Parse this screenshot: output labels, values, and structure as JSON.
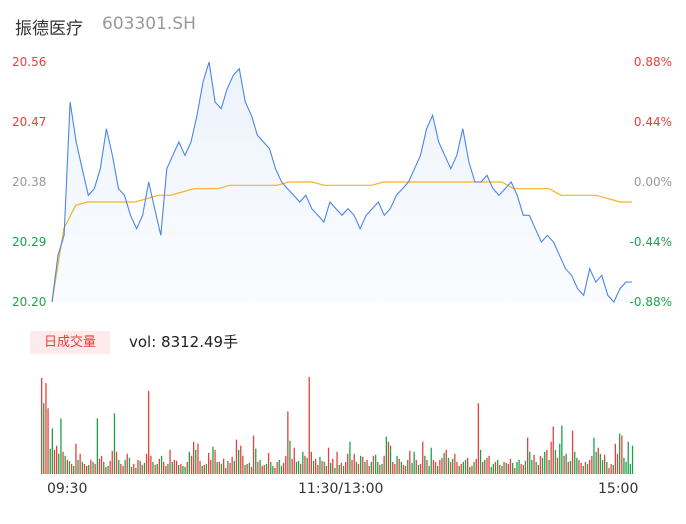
{
  "header": {
    "name": "振德医疗",
    "code": "603301.SH"
  },
  "volume_header": {
    "badge": "日成交量",
    "label": "vol: 8312.49手"
  },
  "colors": {
    "price": "#4a86e8",
    "avg": "#f5b325",
    "up": "#e8403c",
    "down": "#1aa34a",
    "flat": "#999999"
  },
  "chart_data": [
    {
      "type": "line",
      "title": "",
      "x_ticks": [
        "09:30",
        "11:30/13:00",
        "15:00"
      ],
      "y_ticks_left": [
        "20.56",
        "20.47",
        "20.38",
        "20.29",
        "20.20"
      ],
      "y_ticks_right": [
        "0.88%",
        "0.44%",
        "0.00%",
        "-0.44%",
        "-0.88%"
      ],
      "ylim": [
        20.2,
        20.56
      ],
      "prev_close": 20.38,
      "series": [
        {
          "role": "price",
          "values": [
            20.2,
            20.27,
            20.3,
            20.5,
            20.44,
            20.4,
            20.36,
            20.37,
            20.4,
            20.46,
            20.42,
            20.37,
            20.36,
            20.33,
            20.31,
            20.33,
            20.38,
            20.34,
            20.3,
            20.4,
            20.42,
            20.44,
            20.42,
            20.44,
            20.48,
            20.53,
            20.56,
            20.5,
            20.49,
            20.52,
            20.54,
            20.55,
            20.5,
            20.48,
            20.45,
            20.44,
            20.43,
            20.4,
            20.38,
            20.37,
            20.36,
            20.35,
            20.36,
            20.34,
            20.33,
            20.32,
            20.35,
            20.34,
            20.33,
            20.34,
            20.33,
            20.31,
            20.33,
            20.34,
            20.35,
            20.33,
            20.34,
            20.36,
            20.37,
            20.38,
            20.4,
            20.42,
            20.46,
            20.48,
            20.44,
            20.42,
            20.4,
            20.42,
            20.46,
            20.41,
            20.38,
            20.38,
            20.39,
            20.37,
            20.36,
            20.37,
            20.38,
            20.36,
            20.33,
            20.33,
            20.31,
            20.29,
            20.3,
            20.29,
            20.27,
            20.25,
            20.24,
            20.22,
            20.21,
            20.25,
            20.23,
            20.24,
            20.21,
            20.2,
            20.22,
            20.23,
            20.23
          ]
        },
        {
          "role": "avg",
          "values": [
            20.2,
            20.31,
            20.345,
            20.35,
            20.35,
            20.35,
            20.35,
            20.35,
            20.355,
            20.36,
            20.36,
            20.365,
            20.37,
            20.37,
            20.37,
            20.375,
            20.375,
            20.375,
            20.375,
            20.375,
            20.38,
            20.38,
            20.38,
            20.375,
            20.375,
            20.375,
            20.375,
            20.375,
            20.38,
            20.38,
            20.38,
            20.38,
            20.38,
            20.38,
            20.38,
            20.38,
            20.38,
            20.38,
            20.38,
            20.37,
            20.37,
            20.37,
            20.37,
            20.36,
            20.36,
            20.36,
            20.36,
            20.355,
            20.35,
            20.35
          ]
        }
      ]
    },
    {
      "type": "bar",
      "title": "",
      "units": "手",
      "values": [
        95,
        70,
        90,
        65,
        25,
        45,
        24,
        28,
        20,
        55,
        22,
        18,
        14,
        13,
        10,
        8,
        30,
        14,
        20,
        12,
        10,
        8,
        9,
        14,
        12,
        10,
        55,
        15,
        18,
        12,
        7,
        8,
        13,
        23,
        60,
        22,
        14,
        10,
        8,
        14,
        20,
        16,
        7,
        10,
        6,
        14,
        13,
        9,
        11,
        20,
        82,
        18,
        12,
        9,
        10,
        15,
        18,
        12,
        8,
        10,
        24,
        12,
        14,
        13,
        9,
        10,
        8,
        7,
        12,
        22,
        18,
        32,
        24,
        30,
        13,
        8,
        9,
        10,
        21,
        14,
        27,
        24,
        12,
        12,
        10,
        15,
        6,
        13,
        11,
        17,
        13,
        34,
        24,
        28,
        18,
        9,
        10,
        11,
        7,
        38,
        25,
        12,
        14,
        8,
        9,
        10,
        21,
        12,
        8,
        6,
        12,
        14,
        8,
        11,
        18,
        62,
        33,
        15,
        26,
        12,
        13,
        10,
        22,
        18,
        16,
        96,
        22,
        13,
        15,
        9,
        17,
        13,
        12,
        8,
        26,
        11,
        15,
        6,
        22,
        9,
        11,
        8,
        12,
        20,
        32,
        14,
        20,
        12,
        10,
        18,
        17,
        12,
        14,
        8,
        12,
        18,
        19,
        12,
        9,
        10,
        18,
        37,
        32,
        28,
        12,
        10,
        18,
        15,
        12,
        9,
        8,
        14,
        23,
        11,
        22,
        14,
        9,
        10,
        32,
        18,
        14,
        8,
        26,
        14,
        12,
        8,
        14,
        16,
        21,
        24,
        16,
        12,
        15,
        20,
        12,
        8,
        10,
        12,
        14,
        16,
        7,
        8,
        12,
        15,
        70,
        24,
        12,
        14,
        16,
        18,
        7,
        10,
        12,
        14,
        9,
        8,
        12,
        11,
        10,
        15,
        11,
        6,
        12,
        14,
        10,
        9,
        13,
        36,
        22,
        14,
        19,
        12,
        9,
        18,
        16,
        22,
        24,
        14,
        32,
        47,
        24,
        16,
        30,
        48,
        18,
        20,
        12,
        13,
        43,
        22,
        16,
        14,
        11,
        8,
        12,
        10,
        14,
        18,
        36,
        22,
        26,
        20,
        14,
        19,
        12,
        6,
        10,
        9,
        30,
        20,
        40,
        38,
        16,
        12,
        32,
        10,
        28
      ],
      "up": [
        1,
        0,
        1,
        1,
        0,
        0,
        1,
        1,
        0,
        0,
        1,
        0,
        1,
        0,
        1,
        0,
        1,
        0,
        1,
        0,
        1,
        1,
        0,
        1,
        0,
        1,
        0,
        1,
        1,
        0,
        1,
        0,
        1,
        1,
        0,
        1,
        0,
        1,
        1,
        0,
        1,
        0,
        1,
        1,
        0,
        1,
        0,
        1,
        0,
        1,
        1,
        1,
        0,
        1,
        0,
        1,
        0,
        1,
        1,
        0,
        1,
        0,
        1,
        1,
        0,
        1,
        0,
        0,
        1,
        0,
        1,
        1,
        0,
        1,
        1,
        0,
        1,
        0,
        1,
        1,
        0,
        1,
        0,
        1,
        0,
        1,
        1,
        0,
        1,
        1,
        0,
        1,
        0,
        1,
        1,
        0,
        1,
        0,
        1,
        1,
        0,
        1,
        0,
        1,
        1,
        0,
        1,
        0,
        0,
        1,
        1,
        0,
        0,
        1,
        1,
        1,
        0,
        1,
        1,
        0,
        0,
        1,
        0,
        1,
        0,
        1,
        1,
        0,
        1,
        1,
        0,
        1,
        0,
        1,
        1,
        0,
        1,
        0,
        1,
        0,
        1,
        0,
        1,
        1,
        0,
        1,
        1,
        0,
        1,
        0,
        1,
        0,
        1,
        1,
        0,
        1,
        0,
        0,
        1,
        0,
        1,
        0,
        1,
        0,
        1,
        1,
        0,
        1,
        0,
        1,
        1,
        0,
        1,
        0,
        0,
        1,
        0,
        1,
        1,
        0,
        1,
        0,
        0,
        1,
        1,
        0,
        1,
        1,
        0,
        1,
        0,
        1,
        0,
        1,
        1,
        0,
        1,
        0,
        0,
        1,
        0,
        1,
        0,
        1,
        1,
        0,
        1,
        0,
        1,
        1,
        0,
        0,
        1,
        0,
        1,
        0,
        1,
        0,
        1,
        1,
        0,
        1,
        0,
        0,
        1,
        1,
        0,
        1,
        0,
        0,
        1,
        0,
        1,
        1,
        0,
        0,
        1,
        0,
        1,
        1,
        0,
        1,
        0,
        0,
        1,
        0,
        1,
        0,
        1,
        0,
        0,
        1,
        1,
        0,
        1,
        0,
        1,
        1,
        0,
        0,
        1,
        0,
        0,
        1,
        0,
        1,
        1,
        0,
        1,
        1,
        0,
        1,
        0
      ]
    }
  ]
}
